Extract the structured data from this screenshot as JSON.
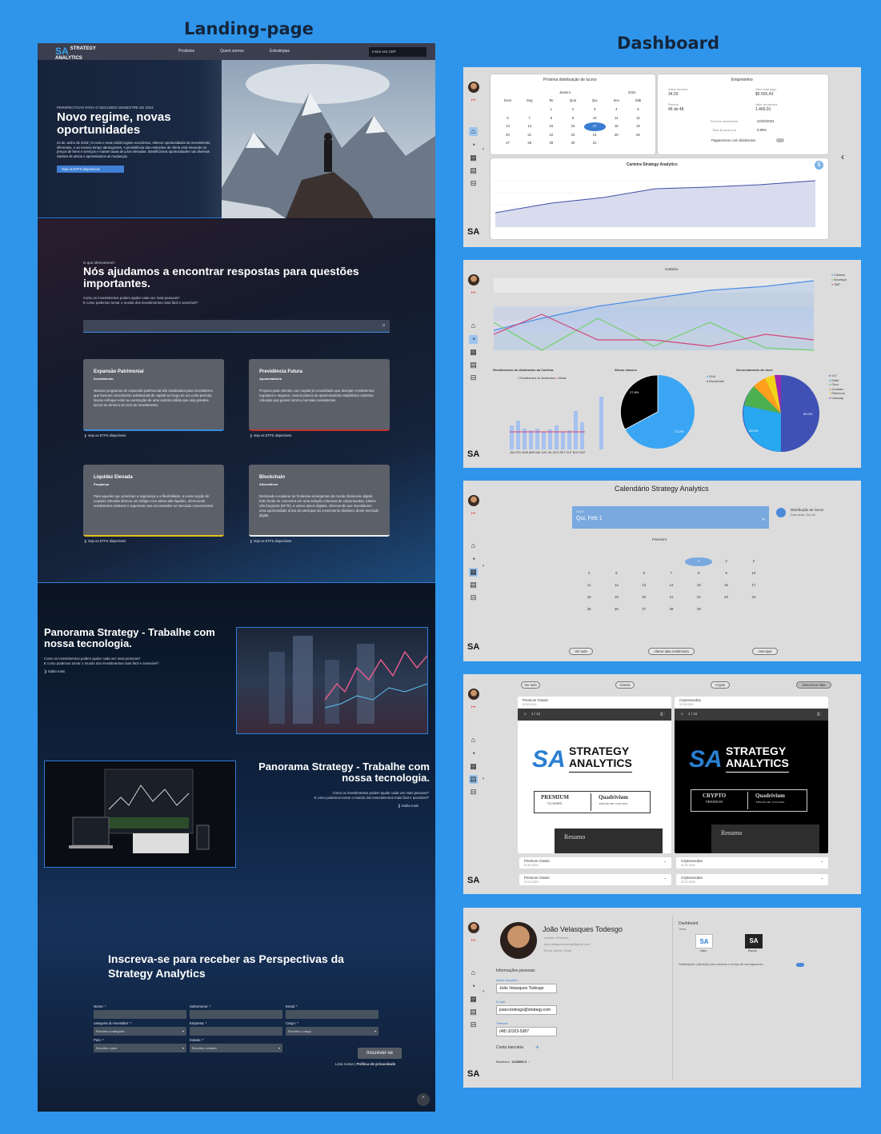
{
  "titles": {
    "landing": "Landing-page",
    "dashboard": "Dashboard"
  },
  "landing": {
    "nav": {
      "logo_mark": "SA",
      "logo_l1": "STRATEGY",
      "logo_l2": "ANALYTICS",
      "links": [
        "Produtos",
        "Quem somos",
        "Estratégias"
      ],
      "search": "Insira seu CEP"
    },
    "hero": {
      "kicker": "PERSPECTIVAS PARA O SEGUNDO SEMESTRE DE 2024",
      "title": "Novo regime, novas oportunidades",
      "body": "20 de Junho de 2023 | O novo e mais volátil regime econômico, oferece oportunidades de investimento diferentes, e ao mesmo tempo abrangentes. A persistência das restrições de oferta está elevando os preços de bens e serviços e manter taxas de juros elevadas. Identificamos oportunidades nas diversas classes de ativos e aproveitamos as mudanças.",
      "button": "Veja os ETFS disponíveis"
    },
    "help": {
      "kicker": "O que oferecemos?",
      "title": "Nós ajudamos a encontrar respostas para questões importantes.",
      "sub1": "Como os investimentos podem ajudar cada vez mais pessoas?",
      "sub2": "E como podemos tornar o mundo dos investimentos mais fácil e acessível?"
    },
    "cards": [
      {
        "title": "Expansão Patrimonial",
        "subtitle": "Investimento",
        "text": "Nossos programas de expansão patrimonial são idealizados para investidores que buscam crescimento substancial de capital ao longo de um curto período. Nosso enfoque está na construção de uma carteira sólida que visa grandes lucros ao término do ciclo de investimento.",
        "link": "Veja os ETFS disponíveis",
        "accent": "#3b8de0"
      },
      {
        "title": "Previdência Futura",
        "subtitle": "Aposentadoria",
        "text": "Projetos para clientes com capital já consolidado que desejam rendimentos regulares e seguros, nossos planos de aposentadoria estabilizam carteiras robustas que geram retorno mensais consistentes.",
        "link": "Veja os ETFS disponíveis",
        "accent": "#c0322c"
      },
      {
        "title": "Liquidez Elevada",
        "subtitle": "Poupança",
        "text": "Para aqueles que priorizam a segurança e a flexibilidade, a nossa opção de Liquidez Elevada oferece um refúgio com ativos alta liquidez, oferecendo rendimentos estáveis e superiores aos encontrados no mercado convencional.",
        "link": "Veja os ETFS disponíveis",
        "accent": "#e3c21f"
      },
      {
        "title": "Blockchain",
        "subtitle": "Alternativos",
        "text": "Destinado a explorar as fronteiras emergentes do mundo financeiro digital. Este fundo se concentra em uma seleção criteriosa de criptomoedas, tokens não fungíveis (NFTs), e outros ativos digitais, oferecendo aos investidores uma oportunidade única de participar do crescimento dinâmico deste mercado digital.",
        "link": "Veja os ETFS disponíveis",
        "accent": "#eeeeee"
      }
    ],
    "panorama1": {
      "title": "Panorama Strategy - Trabalhe com nossa tecnologia.",
      "sub1": "Como os investimentos podem ajudar cada vez mais pessoas?",
      "sub2": "E como podemos tornar o mundo dos investimentos mais fácil e acessível?",
      "link": "Saiba mais"
    },
    "panorama2": {
      "title": "Panorama Strategy - Trabalhe com nossa tecnologia.",
      "sub1": "Como os investimentos podem ajudar cada vez mais pessoas?",
      "sub2": "E como podemos tornar o mundo dos investimentos mais fácil e acessível?",
      "link": "Saiba mais"
    },
    "form": {
      "title": "Inscreva-se para receber as Perspectivas da Strategy Analytics",
      "name": "Nome: *",
      "surname": "Sobrenome: *",
      "email": "Email: *",
      "category": "categoria do investidor: *",
      "company": "Empresa: *",
      "role": "Cargo: *",
      "country": "País: *",
      "state": "Estado: *",
      "cat_ph": "Escolha a categoria",
      "role_ph": "Escolha o cargo",
      "country_ph": "Escolha o país",
      "state_ph": "Escolha o estado",
      "submit": "Inscrever-se",
      "foot1": "Lista nossa",
      "foot2": "Política de privacidade"
    }
  },
  "dash": {
    "p1": {
      "cal_title": "Próxima distribuição de lucros",
      "month": "Janeiro",
      "year": "2024",
      "weekdays": [
        "Dom",
        "Seg",
        "Ter",
        "Qua",
        "Qui",
        "Sex",
        "Sáb"
      ],
      "days": [
        "",
        "",
        "1",
        "2",
        "3",
        "4",
        "5",
        "6",
        "7",
        "8",
        "9",
        "10",
        "11",
        "12",
        "13",
        "14",
        "15",
        "16",
        "17",
        "18",
        "19",
        "20",
        "21",
        "22",
        "23",
        "24",
        "25",
        "26",
        "27",
        "28",
        "29",
        "30",
        "31",
        "",
        ""
      ],
      "emp_title": "Empréstimo",
      "l1": "Saldo devedor",
      "v1": "34,03",
      "l2": "Valor total pago",
      "v2": "$5.555,43",
      "l3": "Parcela",
      "v3": "46 de 48",
      "l4": "Valor da parcela",
      "v4": "1.465,91",
      "l5": "Próximo vencimento",
      "v5": "22/03/2024",
      "l6": "Taxa de juros a.m.",
      "v6": "0,89%",
      "l7": "Pagamentos com dividendos",
      "chart_title": "Carteira Strategy Analytics"
    },
    "p2": {
      "chart_title": "Carteira",
      "legend": [
        "Carteira",
        "Ibovespa",
        "S&P"
      ],
      "bar_title": "Rendimentos de dividendos da Carteira",
      "bar_legend": [
        "Rendimentos de dividendos",
        "Média"
      ],
      "months": "JAN FEV MAR ABR MAI JUN JUL AGO SET OUT NOV DEZ",
      "pie1_title": "Ativos classes",
      "pie2_title": "Gerenciamento de risco",
      "pie1_l1": "27.8%",
      "pie1_l2": "72.2%",
      "pie1_legend": [
        "EUA",
        "Blockchain"
      ],
      "pie2_l1": "50.0%",
      "pie2_l2": "30.0%",
      "pie2_legend": [
        "VLT",
        "Dólar",
        "Ouro",
        "Grandes",
        "Ethereum",
        "Uniswap"
      ]
    },
    "p3": {
      "title": "Calendário Strategy Analytics",
      "year": "2024",
      "date": "Qui, Feb 1",
      "month": "Fevereiro",
      "event": "Distribuição de lucros",
      "event_sub": "Data atual • Dia útil",
      "btn1": "Ver tudo",
      "btn2": "Alterar data rendimento",
      "btn3": "Antecipar",
      "days": [
        "",
        "",
        "",
        "",
        "1",
        "2",
        "3",
        "4",
        "5",
        "6",
        "7",
        "8",
        "9",
        "10",
        "11",
        "12",
        "13",
        "14",
        "15",
        "16",
        "17",
        "18",
        "19",
        "20",
        "21",
        "22",
        "23",
        "24",
        "25",
        "26",
        "27",
        "28",
        "29",
        "",
        ""
      ]
    },
    "p4": {
      "pills": [
        "Ver tudo",
        "Classic",
        "Crypto",
        "Selecionar data"
      ],
      "d1": "Premium Classic",
      "d1date": "02.02.2024",
      "d2": "Criptomoedas",
      "d2date": "02.02.2024",
      "pages1": "1 / 12",
      "pages2": "1 / 16",
      "logo1": "STRATEGY",
      "logo2": "ANALYTICS",
      "box1a": "PREMIUM",
      "box1b": "CLASSIC",
      "box1c": "Quadrivium",
      "box1d": "EDIÇÃO DE 15/01/2024",
      "box2a": "CRYPTO",
      "box2b": "PREMIUM",
      "box2c": "Quadrivium",
      "box2d": "EDIÇÃO DE 15/01/2024",
      "resumo": "Resumo",
      "acc": [
        {
          "t": "Premium Classic",
          "d": "01.01.2024"
        },
        {
          "t": "Criptomoedas",
          "d": "01.01.2024"
        },
        {
          "t": "Premium Classic",
          "d": "22.12.2023"
        },
        {
          "t": "Criptomoedas",
          "d": "22.12.2023"
        }
      ]
    },
    "p5": {
      "name": "João Velasques Todesgo",
      "role": "Investor • Premium",
      "email": "joao.velasquestodesgo@gmail.com",
      "loc": "Rio de Janeiro, Brasil",
      "info": "Informações pessoais",
      "n_lbl": "Nome completo:",
      "n_val": "João Velasques Todesgo",
      "e_lbl": "E-mail:",
      "e_val": "joaov.todesgo@strategy.com",
      "t_lbl": "Telefone:",
      "t_val": "(48) 32323-5387",
      "bank": "Conta bancária",
      "bradesco": "Bradesco",
      "bank_val": "1128605-3",
      "dash": "Dashboard",
      "tema": "Tema",
      "claro": "claro",
      "escuro": "Escuro",
      "notif": "Notificações | Ativação para otimizar o tempo de carregamento"
    }
  }
}
